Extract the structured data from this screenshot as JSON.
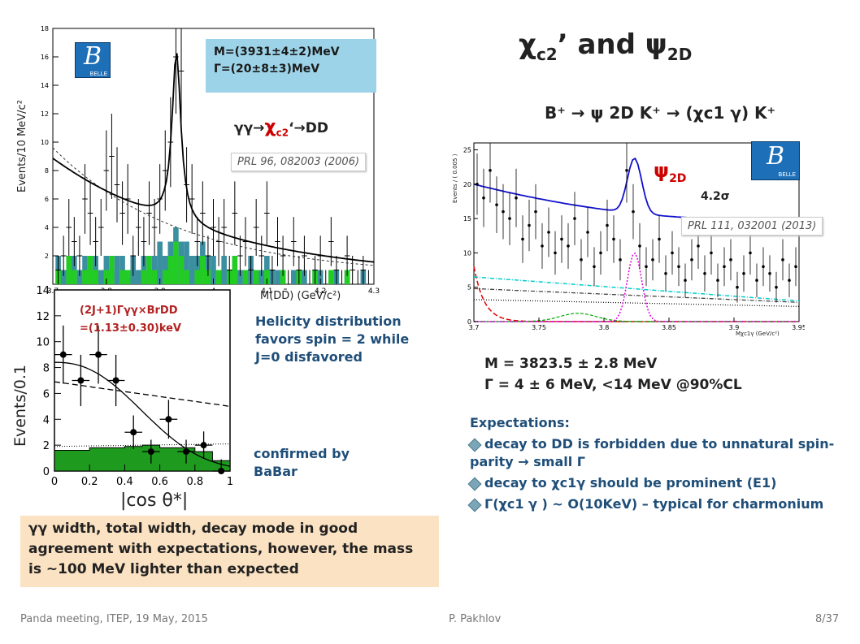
{
  "title": {
    "chi": "χ",
    "sub": "c2",
    "rest": "’ and ψ",
    "sub2": "2D"
  },
  "top_plot": {
    "y_axis_label": "Events/10 MeV/c²",
    "x_axis_label": "M(DD̄) (GeV/c²)",
    "y_ticks": [
      "2",
      "4",
      "6",
      "8",
      "10",
      "12",
      "14",
      "16",
      "18"
    ],
    "x_ticks": [
      "3.7",
      "3.8",
      "3.9",
      "4",
      "4.1",
      "4.2",
      "4.3"
    ],
    "belle_logo_letter": "B",
    "belle_logo_text": "BELLE",
    "fit_box_line1": "M=(3931±4±2)MeV",
    "fit_box_line2": "Γ=(20±8±3)MeV",
    "process_prefix": "γγ→",
    "process_chi": "χ",
    "process_sub": "c2",
    "process_suffix": "‘→DD",
    "reference": "PRL 96, 082003 (2006)"
  },
  "helicity_plot": {
    "y_axis_label": "Events/0.1",
    "x_axis_label": "|cos θ*|",
    "y_ticks": [
      "0",
      "2",
      "4",
      "6",
      "8",
      "10",
      "12",
      "14"
    ],
    "x_ticks": [
      "0",
      "0.2",
      "0.4",
      "0.6",
      "0.8",
      "1"
    ],
    "width_label_line1": "(2J+1)Γγγ×BrDD",
    "width_label_line2": "=(1.13±0.30)keV"
  },
  "helicity_note": "Helicity distribution favors spin = 2 while J=0 disfavored",
  "babar_note": "confirmed by BaBar",
  "summary_box": "γγ width, total width, decay mode in good agreement with expectations, however, the mass is ~100 MeV lighter than expected",
  "right_plot": {
    "heading": "B⁺ → ψ 2D K⁺ → (χc1 γ) K⁺",
    "y_axis_label": "Events / ( 0.005 )",
    "x_axis_label": "Mχc1γ (GeV/c²)",
    "y_ticks": [
      "0",
      "5",
      "10",
      "15",
      "20",
      "25"
    ],
    "x_ticks": [
      "3.7",
      "3.75",
      "3.8",
      "3.85",
      "3.9",
      "3.95"
    ],
    "peak_label": "ψ",
    "peak_sub": "2D",
    "significance": "4.2σ",
    "belle_logo_letter": "B",
    "belle_logo_text": "BELLE",
    "reference": "PRL 111, 032001 (2013)"
  },
  "mass_line": "M = 3823.5 ± 2.8 MeV",
  "width_line": "Γ = 4 ± 6 MeV,  <14 MeV @90%CL",
  "expectations": {
    "heading": "Expectations:",
    "items": [
      "decay to DD is forbidden due to unnatural spin-parity → small Γ",
      "decay to χc1γ should be prominent (E1)",
      "Γ(χc1 γ ) ~ O(10KeV) – typical for charmonium"
    ]
  },
  "footer": {
    "left": "Panda meeting, ITEP, 19 May, 2015",
    "center": "P. Pakhlov",
    "right": "8/37"
  },
  "chart_data": [
    {
      "type": "bar",
      "x_label": "M(DD̄) (GeV/c²)",
      "y_label": "Events/10 MeV/c²",
      "xlim": [
        3.7,
        4.3
      ],
      "ylim": [
        0,
        18
      ],
      "x": [
        3.71,
        3.72,
        3.73,
        3.74,
        3.75,
        3.76,
        3.77,
        3.78,
        3.79,
        3.8,
        3.81,
        3.82,
        3.83,
        3.84,
        3.85,
        3.86,
        3.87,
        3.88,
        3.89,
        3.9,
        3.91,
        3.92,
        3.93,
        3.94,
        3.95,
        3.96,
        3.97,
        3.98,
        3.99,
        4.0,
        4.01,
        4.02,
        4.03,
        4.04,
        4.05,
        4.06,
        4.07,
        4.08,
        4.09,
        4.1,
        4.11,
        4.12,
        4.13,
        4.14,
        4.15,
        4.16,
        4.17,
        4.18,
        4.19,
        4.2,
        4.21,
        4.22,
        4.23,
        4.24,
        4.25,
        4.26,
        4.27,
        4.28,
        4.29
      ],
      "y": [
        1,
        2,
        4,
        3,
        2,
        6,
        5,
        3,
        4,
        8,
        9,
        7,
        5,
        6,
        2,
        4,
        3,
        5,
        4,
        6,
        8,
        10,
        16,
        15,
        7,
        6,
        3,
        5,
        2,
        4,
        3,
        4,
        1,
        5,
        2,
        3,
        1,
        4,
        2,
        5,
        1,
        3,
        2,
        0,
        3,
        1,
        2,
        0,
        1,
        2,
        0,
        3,
        1,
        0,
        2,
        1,
        0,
        1,
        0
      ],
      "fit_peak_mass": 3.931,
      "fit_width": 0.02
    },
    {
      "type": "scatter",
      "x_label": "|cos θ*|",
      "y_label": "Events/0.1",
      "xlim": [
        0,
        1
      ],
      "ylim": [
        0,
        14
      ],
      "x": [
        0.05,
        0.15,
        0.25,
        0.35,
        0.45,
        0.55,
        0.65,
        0.75,
        0.85,
        0.95
      ],
      "y": [
        9,
        7,
        9,
        7,
        3,
        1.5,
        4,
        1.5,
        2,
        0
      ]
    },
    {
      "type": "scatter",
      "x_label": "Mχc1γ (GeV/c²)",
      "y_label": "Events / ( 0.005 )",
      "xlim": [
        3.7,
        3.95
      ],
      "ylim": [
        0,
        26
      ],
      "x": [
        3.7025,
        3.7075,
        3.7125,
        3.7175,
        3.7225,
        3.7275,
        3.7325,
        3.7375,
        3.7425,
        3.7475,
        3.7525,
        3.7575,
        3.7625,
        3.7675,
        3.7725,
        3.7775,
        3.7825,
        3.7875,
        3.7925,
        3.7975,
        3.8025,
        3.8075,
        3.8125,
        3.8175,
        3.8225,
        3.8275,
        3.8325,
        3.8375,
        3.8425,
        3.8475,
        3.8525,
        3.8575,
        3.8625,
        3.8675,
        3.8725,
        3.8775,
        3.8825,
        3.8875,
        3.8925,
        3.8975,
        3.9025,
        3.9075,
        3.9125,
        3.9175,
        3.9225,
        3.9275,
        3.9325,
        3.9375,
        3.9425,
        3.9475
      ],
      "y": [
        20,
        18,
        22,
        17,
        16,
        15,
        18,
        12,
        14,
        16,
        11,
        13,
        10,
        12,
        11,
        15,
        9,
        13,
        8,
        10,
        14,
        12,
        9,
        22,
        16,
        11,
        8,
        9,
        12,
        7,
        10,
        8,
        6,
        9,
        11,
        7,
        10,
        6,
        8,
        9,
        5,
        7,
        10,
        6,
        8,
        7,
        5,
        9,
        6,
        8
      ]
    }
  ]
}
